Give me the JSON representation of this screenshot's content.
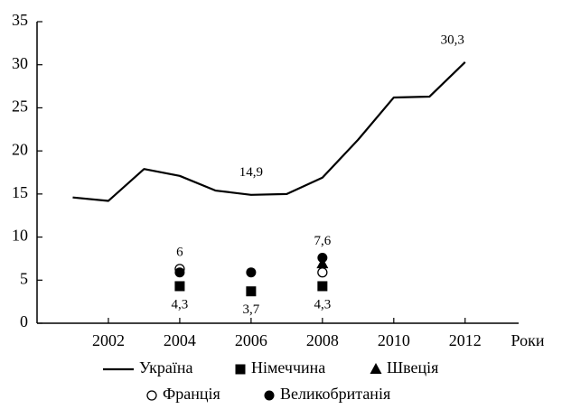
{
  "chart_data": {
    "type": "line",
    "x": [
      2001,
      2002,
      2003,
      2004,
      2005,
      2006,
      2007,
      2008,
      2009,
      2010,
      2011,
      2012
    ],
    "x_label": "Роки",
    "series": [
      {
        "name": "Україна",
        "marker": "line",
        "color": "#000000",
        "values": [
          14.6,
          14.2,
          17.9,
          17.1,
          15.4,
          14.9,
          15.0,
          16.9,
          21.3,
          26.2,
          26.3,
          30.3
        ],
        "value_labels": [
          null,
          null,
          null,
          null,
          null,
          "14,9",
          null,
          null,
          null,
          null,
          null,
          "30,3"
        ]
      },
      {
        "name": "Німеччина",
        "marker": "square",
        "color": "#000000",
        "values": [
          null,
          null,
          null,
          4.3,
          null,
          3.7,
          null,
          4.3,
          null,
          null,
          null,
          null
        ],
        "value_labels": [
          null,
          null,
          null,
          "4,3",
          null,
          "3,7",
          null,
          "4,3",
          null,
          null,
          null,
          null
        ]
      },
      {
        "name": "Швеція",
        "marker": "triangle",
        "color": "#000000",
        "values": [
          null,
          null,
          null,
          null,
          null,
          null,
          null,
          6.9,
          null,
          null,
          null,
          null
        ]
      },
      {
        "name": "Франція",
        "marker": "circle-open",
        "color": "#000000",
        "values": [
          null,
          null,
          null,
          6.3,
          null,
          null,
          null,
          5.9,
          null,
          null,
          null,
          null
        ],
        "value_labels": [
          null,
          null,
          null,
          "6",
          null,
          null,
          null,
          null,
          null,
          null,
          null,
          null
        ]
      },
      {
        "name": "Великобританія",
        "marker": "circle",
        "color": "#000000",
        "values": [
          null,
          null,
          null,
          5.9,
          null,
          5.9,
          null,
          7.6,
          null,
          null,
          null,
          null
        ],
        "value_labels": [
          null,
          null,
          null,
          null,
          null,
          null,
          null,
          "7,6",
          null,
          null,
          null,
          null
        ]
      }
    ],
    "xlim": [
      2000,
      2013.5
    ],
    "xticks": [
      2002,
      2004,
      2006,
      2008,
      2010,
      2012
    ],
    "ylim": [
      0,
      35
    ],
    "yticks": [
      0,
      5,
      10,
      15,
      20,
      25,
      30,
      35
    ]
  }
}
